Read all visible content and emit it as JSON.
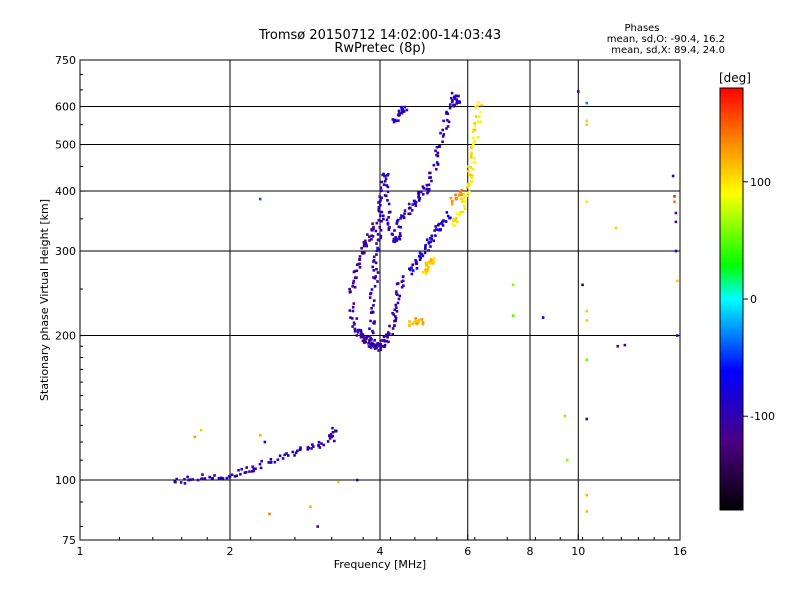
{
  "chart_data": {
    "type": "scatter",
    "title": "Tromsø 20150712 14:02:00-14:03:43",
    "subtitle": "RwPretec (8p)",
    "xlabel": "Frequency [MHz]",
    "ylabel": "Stationary phase Virtual Height [km]",
    "x_scale": "log",
    "y_scale": "log",
    "xlim": [
      1,
      16
    ],
    "ylim": [
      75,
      750
    ],
    "x_ticks": [
      1,
      2,
      4,
      6,
      8,
      10,
      16
    ],
    "x_tick_labels": [
      "1",
      "2",
      "4",
      "6",
      "8",
      "10",
      "16"
    ],
    "y_ticks": [
      75,
      100,
      200,
      300,
      400,
      500,
      600,
      750
    ],
    "y_tick_labels": [
      "75",
      "100",
      "200",
      "300",
      "400",
      "500",
      "600",
      "750"
    ],
    "x_gridlines": [
      2,
      4,
      6,
      8,
      10
    ],
    "y_gridlines": [
      100,
      200,
      300,
      400,
      500,
      600
    ],
    "grid": true,
    "phase_stats": {
      "title": "Phases",
      "line_o": "mean, sd,O: -90.4, 16.2",
      "line_x": "mean, sd,X:  89.4, 24.0"
    },
    "colorbar": {
      "label": "[deg]",
      "range": [
        -180,
        180
      ],
      "tick_values": [
        100,
        0,
        -100
      ],
      "tick_labels": [
        "100",
        "0",
        "-100"
      ]
    },
    "series": [
      {
        "traces": [
          {
            "f": [
              1.55,
              1.65,
              1.75,
              1.85,
              1.95,
              2.05,
              2.15,
              2.25,
              2.4,
              2.55,
              2.7,
              2.85,
              3.0,
              3.15
            ],
            "h": [
              99,
              100,
              101,
              102,
              100,
              103,
              105,
              106,
              110,
              111,
              114,
              117,
              118,
              121
            ],
            "phase": -100
          },
          {
            "f": [
              3.2,
              3.22,
              3.25
            ],
            "h": [
              122,
              125,
              127
            ],
            "phase": -110
          },
          {
            "f": [
              3.85,
              3.85,
              3.86,
              3.88,
              3.9,
              3.92,
              3.95,
              3.98,
              4.0,
              4.02,
              4.04,
              4.06,
              4.08,
              4.1,
              4.15,
              4.2,
              4.25,
              4.3,
              4.35,
              4.4,
              4.5,
              4.6,
              4.7,
              4.8,
              4.9,
              5.0,
              5.1,
              5.2,
              5.3,
              5.4,
              5.5,
              5.6,
              5.65,
              5.7,
              5.75
            ],
            "h": [
              190,
              205,
              220,
              240,
              260,
              280,
              300,
              320,
              340,
              360,
              380,
              400,
              420,
              440,
              360,
              340,
              320,
              310,
              330,
              350,
              360,
              370,
              380,
              390,
              400,
              410,
              440,
              470,
              500,
              540,
              580,
              610,
              640,
              620,
              600
            ],
            "phase": -100
          },
          {
            "f": [
              3.5,
              3.55,
              3.6,
              3.65,
              3.7,
              3.75,
              3.8,
              3.85,
              3.9,
              3.95,
              4.0,
              4.05,
              4.1,
              4.15,
              4.2,
              4.25,
              4.3,
              4.35,
              4.4,
              4.5
            ],
            "h": [
              230,
              215,
              205,
              200,
              198,
              196,
              194,
              192,
              190,
              190,
              188,
              190,
              195,
              200,
              205,
              215,
              225,
              240,
              255,
              270
            ],
            "phase": -110
          },
          {
            "f": [
              3.5,
              3.55,
              3.6,
              3.65,
              3.7,
              3.75,
              3.8,
              3.85,
              3.9
            ],
            "h": [
              245,
              260,
              275,
              290,
              300,
              310,
              320,
              330,
              345
            ],
            "phase": -120
          },
          {
            "f": [
              4.3,
              4.35,
              4.4,
              4.45,
              4.5
            ],
            "h": [
              560,
              570,
              580,
              590,
              600
            ],
            "phase": -100
          },
          {
            "f": [
              4.6,
              4.7,
              4.8,
              4.9,
              5.0,
              5.1,
              5.2,
              5.3,
              5.4,
              5.5
            ],
            "h": [
              270,
              280,
              290,
              300,
              310,
              320,
              330,
              340,
              350,
              360
            ],
            "phase": -90
          }
        ]
      },
      {
        "traces": [
          {
            "f": [
              5.6,
              5.7,
              5.8,
              5.9,
              6.0,
              6.05,
              6.1,
              6.15,
              6.2,
              6.25,
              6.3,
              6.35
            ],
            "h": [
              340,
              350,
              360,
              380,
              400,
              420,
              440,
              470,
              500,
              540,
              580,
              630
            ],
            "phase": 100
          },
          {
            "f": [
              4.9,
              4.95,
              5.0,
              5.05,
              5.1
            ],
            "h": [
              270,
              275,
              280,
              285,
              290
            ],
            "phase": 110
          },
          {
            "f": [
              4.6,
              4.7,
              4.8,
              4.9
            ],
            "h": [
              210,
              212,
              215,
              212
            ],
            "phase": 120
          },
          {
            "f": [
              5.6,
              5.7,
              5.8
            ],
            "h": [
              380,
              390,
              400
            ],
            "phase": 140
          }
        ]
      }
    ],
    "isolated_points": [
      {
        "f": 2.3,
        "h": 385,
        "phase": -40
      },
      {
        "f": 1.7,
        "h": 123,
        "phase": 130
      },
      {
        "f": 1.75,
        "h": 127,
        "phase": 110
      },
      {
        "f": 2.3,
        "h": 124,
        "phase": 120
      },
      {
        "f": 2.35,
        "h": 120,
        "phase": -100
      },
      {
        "f": 2.4,
        "h": 85,
        "phase": 140
      },
      {
        "f": 2.9,
        "h": 88,
        "phase": 120
      },
      {
        "f": 3.0,
        "h": 80,
        "phase": -110
      },
      {
        "f": 3.6,
        "h": 100,
        "phase": -100
      },
      {
        "f": 3.3,
        "h": 99,
        "phase": 110
      },
      {
        "f": 7.4,
        "h": 255,
        "phase": 60
      },
      {
        "f": 7.4,
        "h": 220,
        "phase": 50
      },
      {
        "f": 8.5,
        "h": 218,
        "phase": -60
      },
      {
        "f": 9.4,
        "h": 136,
        "phase": 60
      },
      {
        "f": 9.5,
        "h": 110,
        "phase": 60
      },
      {
        "f": 10.0,
        "h": 645,
        "phase": -110
      },
      {
        "f": 10.2,
        "h": 255,
        "phase": -140
      },
      {
        "f": 10.4,
        "h": 610,
        "phase": -30
      },
      {
        "f": 10.4,
        "h": 560,
        "phase": 110
      },
      {
        "f": 10.4,
        "h": 550,
        "phase": 110
      },
      {
        "f": 10.4,
        "h": 380,
        "phase": 100
      },
      {
        "f": 10.4,
        "h": 225,
        "phase": 110
      },
      {
        "f": 10.4,
        "h": 215,
        "phase": 110
      },
      {
        "f": 10.4,
        "h": 178,
        "phase": 50
      },
      {
        "f": 10.4,
        "h": 134,
        "phase": -110
      },
      {
        "f": 10.4,
        "h": 93,
        "phase": 120
      },
      {
        "f": 10.4,
        "h": 86,
        "phase": 120
      },
      {
        "f": 11.9,
        "h": 335,
        "phase": 110
      },
      {
        "f": 12.0,
        "h": 190,
        "phase": -130
      },
      {
        "f": 12.4,
        "h": 191,
        "phase": -120
      },
      {
        "f": 15.5,
        "h": 430,
        "phase": -80
      },
      {
        "f": 15.6,
        "h": 390,
        "phase": 170
      },
      {
        "f": 15.6,
        "h": 380,
        "phase": 140
      },
      {
        "f": 15.7,
        "h": 360,
        "phase": -120
      },
      {
        "f": 15.7,
        "h": 345,
        "phase": -130
      },
      {
        "f": 15.7,
        "h": 300,
        "phase": -90
      },
      {
        "f": 15.8,
        "h": 260,
        "phase": 110
      },
      {
        "f": 15.8,
        "h": 200,
        "phase": -100
      }
    ]
  }
}
